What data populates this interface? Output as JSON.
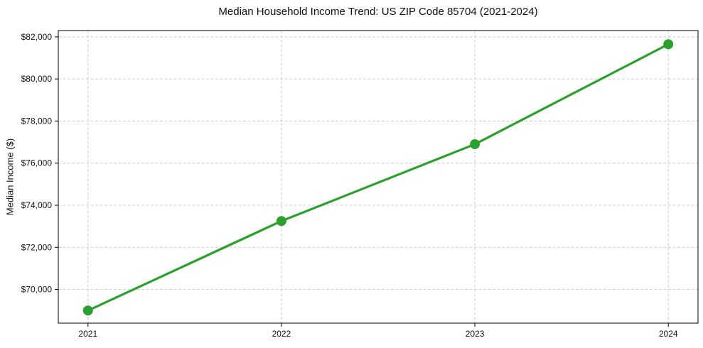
{
  "chart_data": {
    "type": "line",
    "title": "Median Household Income Trend: US ZIP Code 85704 (2021-2024)",
    "xlabel": "",
    "ylabel": "Median Income ($)",
    "x": [
      2021,
      2022,
      2023,
      2024
    ],
    "x_tick_labels": [
      "2021",
      "2022",
      "2023",
      "2024"
    ],
    "values": [
      69000,
      73250,
      76900,
      81650
    ],
    "y_ticks": [
      70000,
      72000,
      74000,
      76000,
      78000,
      80000,
      82000
    ],
    "y_tick_labels": [
      "$70,000",
      "$72,000",
      "$74,000",
      "$76,000",
      "$78,000",
      "$80,000",
      "$82,000"
    ],
    "xlim": [
      2020.8465,
      2024.1535
    ],
    "ylim": [
      68400,
      82300
    ],
    "grid": true,
    "grid_style": "dashed",
    "legend": "none",
    "marker": "circle",
    "colors": {
      "line": "#2ca02c",
      "marker": "#2ca02c",
      "grid": "#cdcdcd",
      "spine": "#000000",
      "text": "#111111",
      "background": "#ffffff"
    }
  }
}
